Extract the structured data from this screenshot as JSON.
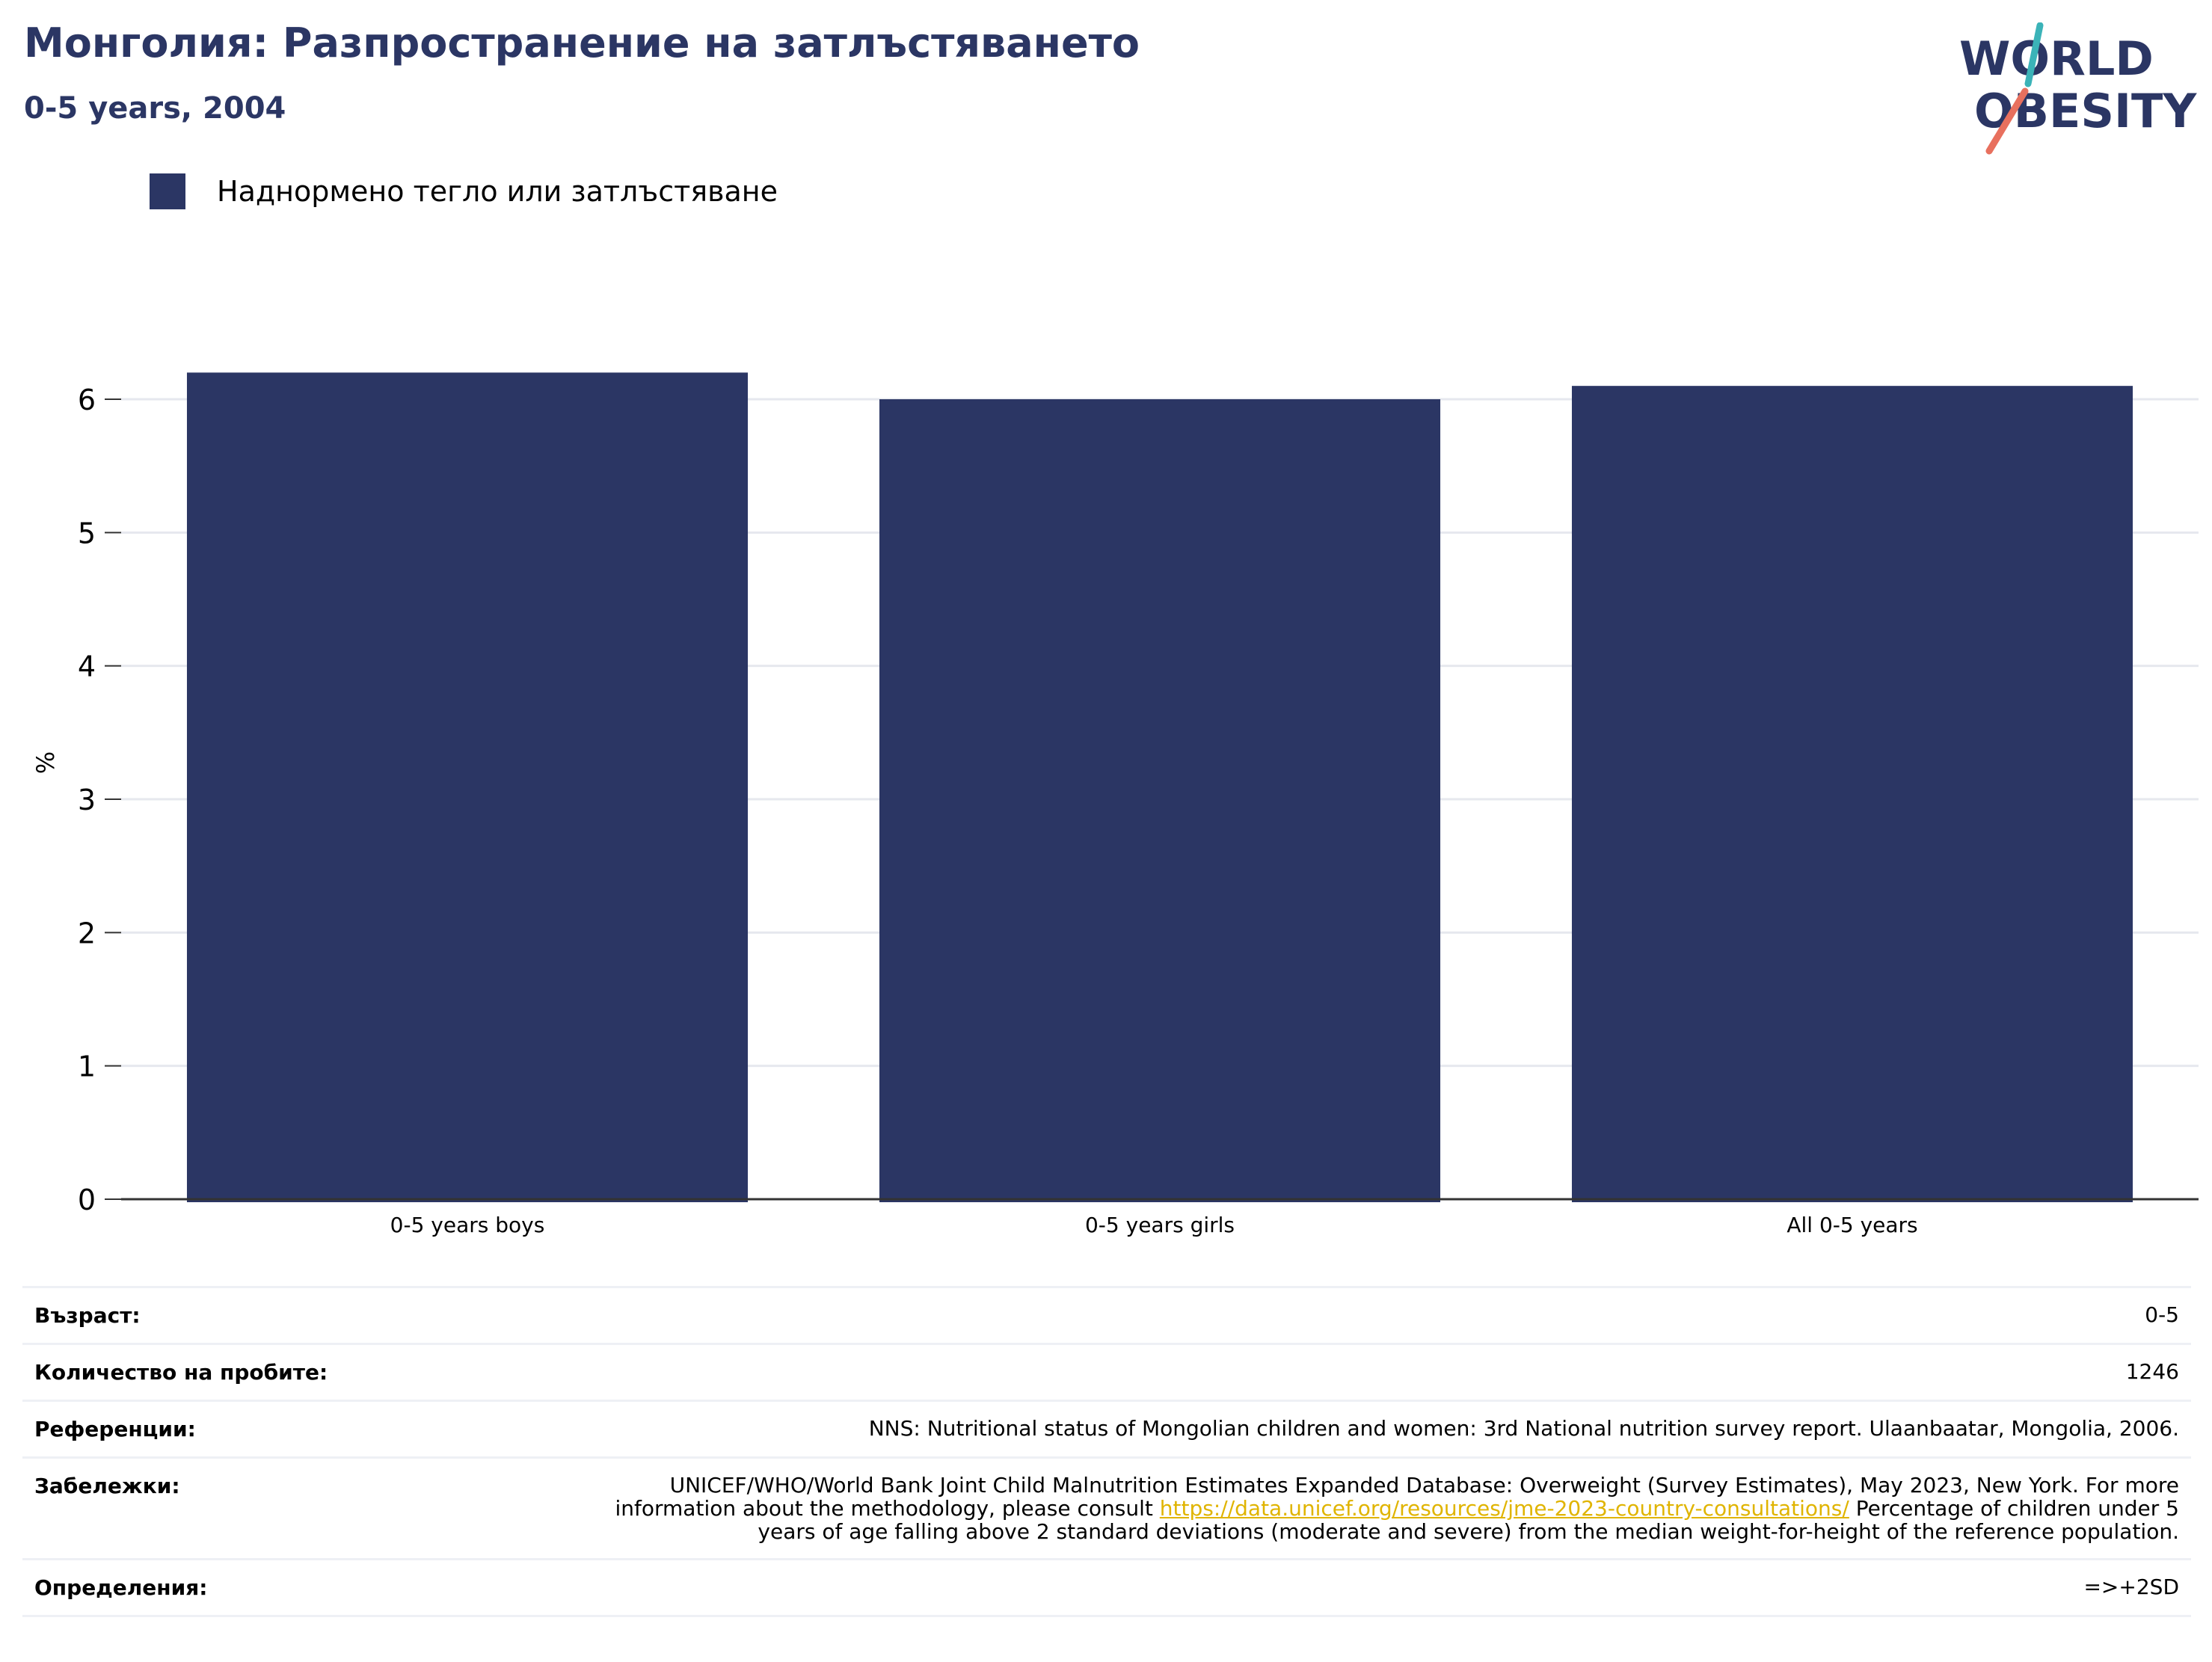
{
  "header": {
    "title": "Монголия: Разпространение на затлъстяването",
    "subtitle": "0-5 years, 2004"
  },
  "logo": {
    "line1": "WORLD",
    "line2": "OBESITY"
  },
  "legend": {
    "label": "Наднормено тегло или затлъстяване",
    "color": "#2b3664"
  },
  "chart_data": {
    "type": "bar",
    "categories": [
      "0-5 years boys",
      "0-5 years girls",
      "All 0-5 years"
    ],
    "series": [
      {
        "name": "Наднормено тегло или затлъстяване",
        "values": [
          6.2,
          6.0,
          6.1
        ],
        "color": "#2b3664"
      }
    ],
    "ylabel": "%",
    "ylim": [
      0,
      6.5
    ],
    "yticks": [
      0,
      1,
      2,
      3,
      4,
      5,
      6
    ],
    "grid": true,
    "legend_position": "top-left"
  },
  "meta": {
    "age": {
      "label": "Възраст:",
      "value": "0-5"
    },
    "sample": {
      "label": "Количество на пробите:",
      "value": "1246"
    },
    "references": {
      "label": "Референции:",
      "value": "NNS: Nutritional status of Mongolian children and women: 3rd National nutrition survey report. Ulaanbaatar, Mongolia, 2006."
    },
    "notes": {
      "label": "Забележки:",
      "text_before": "UNICEF/WHO/World Bank Joint Child Malnutrition Estimates Expanded Database: Overweight (Survey Estimates), May 2023, New York. For more information about the methodology, please consult ",
      "link": "https://data.unicef.org/resources/jme-2023-country-consultations/",
      "text_after": " Percentage of children under 5 years of age falling above 2 standard deviations (moderate and severe) from the median weight-for-height of the reference population."
    },
    "definitions": {
      "label": "Определения:",
      "value": "=>+2SD"
    }
  }
}
